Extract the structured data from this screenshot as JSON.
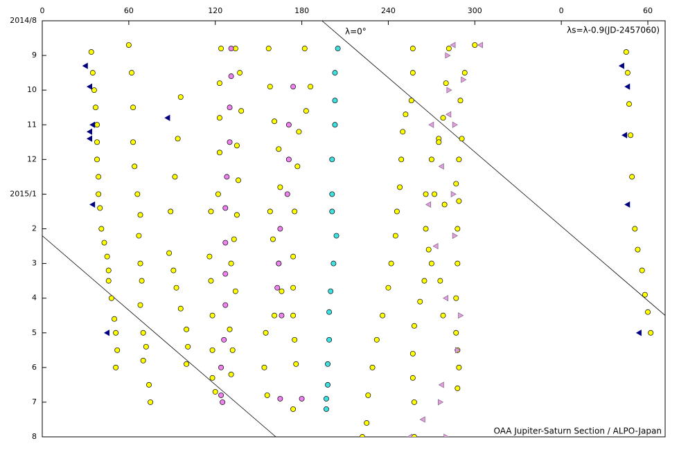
{
  "chart_data": {
    "type": "scatter",
    "xlim": [
      0,
      432
    ],
    "xticks": [
      0,
      60,
      120,
      180,
      240,
      300,
      {
        "value": 360,
        "label": "0"
      },
      {
        "value": 420,
        "label": "60"
      }
    ],
    "ylim": [
      12,
      0
    ],
    "yticks": [
      {
        "value": 0,
        "label": "2014/8"
      },
      {
        "value": 1,
        "label": "9"
      },
      {
        "value": 2,
        "label": "10"
      },
      {
        "value": 3,
        "label": "11"
      },
      {
        "value": 4,
        "label": "12"
      },
      {
        "value": 5,
        "label": "2015/1"
      },
      {
        "value": 6,
        "label": "2"
      },
      {
        "value": 7,
        "label": "3"
      },
      {
        "value": 8,
        "label": "4"
      },
      {
        "value": 9,
        "label": "5"
      },
      {
        "value": 10,
        "label": "6"
      },
      {
        "value": 11,
        "label": "7"
      },
      {
        "value": 12,
        "label": "8"
      }
    ],
    "annotations": [
      "λ=0°",
      "λs=λ-0.9(JD-2457060)",
      "OAA Jupiter-Saturn Section / ALPO-Japan"
    ],
    "drift_lines": [
      {
        "x": [
          194,
          432
        ],
        "y": [
          0,
          8.5
        ]
      },
      {
        "x": [
          0,
          162
        ],
        "y": [
          6.2,
          12
        ]
      }
    ],
    "series": [
      {
        "color": "#ffff00",
        "marker": "circle",
        "x": [
          34,
          35,
          36,
          37,
          38,
          38,
          38,
          39,
          39,
          40,
          41,
          43,
          45,
          46,
          46,
          48,
          50,
          51,
          52,
          51,
          405,
          406,
          407,
          408,
          409,
          411,
          413,
          416,
          418,
          420,
          422,
          60,
          62,
          63,
          63,
          64,
          66,
          68,
          67,
          68,
          69,
          68,
          70,
          72,
          70,
          74,
          75,
          96,
          94,
          92,
          89,
          88,
          91,
          93,
          96,
          100,
          101,
          100,
          124,
          123,
          123,
          123,
          122,
          117,
          116,
          117,
          118,
          118,
          118,
          120,
          134,
          137,
          138,
          135,
          136,
          135,
          133,
          131,
          134,
          130,
          132,
          131,
          157,
          158,
          161,
          164,
          165,
          158,
          160,
          164,
          166,
          161,
          155,
          154,
          156,
          182,
          186,
          183,
          178,
          177,
          175,
          174,
          174,
          174,
          175,
          176,
          174,
          257,
          257,
          256,
          252,
          250,
          249,
          248,
          246,
          245,
          242,
          240,
          236,
          232,
          229,
          226,
          225,
          222,
          275,
          270,
          266,
          266,
          268,
          270,
          265,
          262,
          258,
          257,
          257,
          258,
          258,
          300,
          293,
          290,
          291,
          289,
          287,
          289,
          288,
          288,
          287,
          287,
          288,
          289,
          288,
          282,
          280,
          278,
          275,
          272,
          279,
          276,
          278
        ],
        "y": [
          0.9,
          1.5,
          2.0,
          2.5,
          3.0,
          3.5,
          4.0,
          4.5,
          5.0,
          5.4,
          6.0,
          6.4,
          6.8,
          7.2,
          7.5,
          8.0,
          8.6,
          9.0,
          9.5,
          10.0,
          0.9,
          1.5,
          2.4,
          3.3,
          4.5,
          6.0,
          6.6,
          7.2,
          7.9,
          8.4,
          9.0,
          0.7,
          1.5,
          2.5,
          3.5,
          4.2,
          5.0,
          5.6,
          6.2,
          7.0,
          7.5,
          8.2,
          9.0,
          9.4,
          9.8,
          10.5,
          11.0,
          2.2,
          3.4,
          4.5,
          5.5,
          6.7,
          7.2,
          7.7,
          8.3,
          8.9,
          9.4,
          9.9,
          0.8,
          1.8,
          2.8,
          3.8,
          5.0,
          5.5,
          6.8,
          7.5,
          8.5,
          9.5,
          10.3,
          10.7,
          0.8,
          1.5,
          2.6,
          3.6,
          4.6,
          5.6,
          6.3,
          7.0,
          7.8,
          8.9,
          9.5,
          10.2,
          0.8,
          1.9,
          2.9,
          3.7,
          4.8,
          5.5,
          6.3,
          7.0,
          7.8,
          8.5,
          9.0,
          10.0,
          10.8,
          0.8,
          1.9,
          2.6,
          3.2,
          4.2,
          5.5,
          6.8,
          7.7,
          8.5,
          9.2,
          9.9,
          11.2,
          0.8,
          1.5,
          2.3,
          2.7,
          3.2,
          4.0,
          4.8,
          5.5,
          6.2,
          7.0,
          7.7,
          8.5,
          9.2,
          10.0,
          10.8,
          11.6,
          12.0,
          3.4,
          4.0,
          5.0,
          6.0,
          6.6,
          7.0,
          7.5,
          8.1,
          8.8,
          9.6,
          10.3,
          11.0,
          12.0,
          0.7,
          1.5,
          2.3,
          3.4,
          4.0,
          4.7,
          5.2,
          6.0,
          7.0,
          8.0,
          9.0,
          9.5,
          10.0,
          10.6,
          0.8,
          1.8,
          2.8,
          3.5,
          5.0,
          5.3,
          7.5,
          8.5
        ]
      },
      {
        "color": "#ee82ee",
        "marker": "circle",
        "x": [
          131,
          131,
          130,
          130,
          128,
          127,
          127,
          127,
          127,
          126,
          124,
          124,
          125,
          174,
          171,
          171,
          170,
          165,
          164,
          163,
          166,
          165,
          180
        ],
        "y": [
          0.8,
          1.6,
          2.5,
          3.5,
          4.5,
          5.4,
          6.4,
          7.3,
          8.2,
          9.2,
          10.0,
          10.8,
          11.0,
          1.9,
          3.0,
          4.0,
          5.0,
          6.0,
          7.0,
          7.7,
          8.5,
          10.9,
          10.9
        ]
      },
      {
        "color": "#40e0e0",
        "marker": "circle",
        "x": [
          205,
          203,
          203,
          203,
          201,
          201,
          201,
          204,
          202,
          200,
          199,
          199,
          198,
          198,
          197,
          197
        ],
        "y": [
          0.8,
          1.5,
          2.3,
          3.0,
          4.0,
          5.0,
          5.5,
          6.2,
          7.0,
          7.8,
          8.4,
          9.2,
          9.9,
          10.5,
          10.9,
          11.2
        ]
      },
      {
        "color": "#000080",
        "marker": "triangle-left",
        "x": [
          30,
          33,
          35,
          33,
          33,
          35,
          45,
          87,
          402,
          406,
          406,
          404,
          414
        ],
        "y": [
          1.3,
          1.9,
          3.0,
          3.2,
          3.4,
          5.3,
          9.0,
          2.8,
          1.3,
          1.9,
          5.3,
          3.3,
          9.0
        ]
      },
      {
        "color": "#e0a0e0",
        "marker": "triangle-right",
        "x": [
          281,
          282,
          286,
          285,
          286,
          290,
          288,
          276,
          280,
          292
        ],
        "y": [
          1.0,
          2.0,
          3.0,
          5.0,
          6.2,
          8.5,
          9.5,
          11.0,
          12.0,
          1.7
        ]
      },
      {
        "color": "#e0a0e0",
        "marker": "triangle-left",
        "x": [
          304,
          285,
          282,
          277,
          270,
          268,
          273,
          280,
          277,
          264,
          255
        ],
        "y": [
          0.7,
          0.7,
          2.7,
          4.2,
          3.0,
          5.3,
          6.5,
          8.0,
          10.5,
          11.5,
          12.0
        ]
      }
    ]
  }
}
